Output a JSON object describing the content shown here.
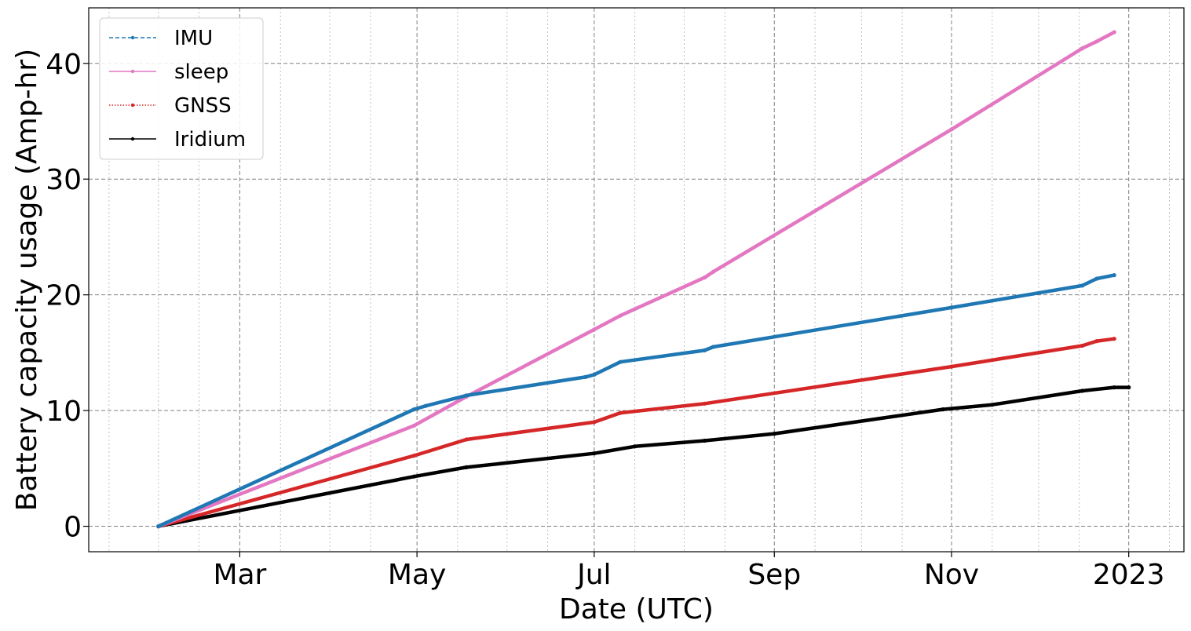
{
  "chart_data": {
    "type": "line",
    "xlabel": "Date (UTC)",
    "ylabel": "Battery capacity usage (Amp-hr)",
    "x_ticks": [
      {
        "date": "2022-03-01",
        "label": "Mar"
      },
      {
        "date": "2022-05-01",
        "label": "May"
      },
      {
        "date": "2022-07-01",
        "label": "Jul"
      },
      {
        "date": "2022-09-01",
        "label": "Sep"
      },
      {
        "date": "2022-11-01",
        "label": "Nov"
      },
      {
        "date": "2023-01-01",
        "label": "2023"
      }
    ],
    "y_ticks": [
      0,
      10,
      20,
      30,
      40
    ],
    "xlim": [
      "2022-01-08",
      "2023-01-20"
    ],
    "ylim": [
      -2.2,
      44.8
    ],
    "grid": true,
    "legend_position": "top-left",
    "series": [
      {
        "name": "IMU",
        "color": "#1f77b4",
        "line_style": "dashed",
        "points": [
          [
            "2022-02-01",
            0
          ],
          [
            "2022-04-30",
            10.1
          ],
          [
            "2022-05-04",
            10.4
          ],
          [
            "2022-05-18",
            11.3
          ],
          [
            "2022-06-28",
            12.9
          ],
          [
            "2022-07-01",
            13.1
          ],
          [
            "2022-07-10",
            14.2
          ],
          [
            "2022-08-08",
            15.2
          ],
          [
            "2022-08-11",
            15.5
          ],
          [
            "2022-11-01",
            18.9
          ],
          [
            "2022-12-16",
            20.8
          ],
          [
            "2022-12-21",
            21.4
          ],
          [
            "2022-12-27",
            21.7
          ]
        ]
      },
      {
        "name": "sleep",
        "color": "#e377c2",
        "line_style": "solid",
        "points": [
          [
            "2022-02-01",
            0
          ],
          [
            "2022-04-30",
            8.7
          ],
          [
            "2022-05-18",
            11.2
          ],
          [
            "2022-07-01",
            17.0
          ],
          [
            "2022-07-10",
            18.2
          ],
          [
            "2022-08-08",
            21.5
          ],
          [
            "2022-08-11",
            22.0
          ],
          [
            "2022-11-01",
            34.3
          ],
          [
            "2022-12-16",
            41.3
          ],
          [
            "2022-12-21",
            41.9
          ],
          [
            "2022-12-27",
            42.7
          ]
        ]
      },
      {
        "name": "GNSS",
        "color": "#d62728",
        "line_style": "dotted",
        "points": [
          [
            "2022-02-01",
            0
          ],
          [
            "2022-04-30",
            6.1
          ],
          [
            "2022-05-18",
            7.5
          ],
          [
            "2022-07-01",
            9.0
          ],
          [
            "2022-07-10",
            9.8
          ],
          [
            "2022-08-08",
            10.6
          ],
          [
            "2022-11-01",
            13.8
          ],
          [
            "2022-12-16",
            15.6
          ],
          [
            "2022-12-21",
            16.0
          ],
          [
            "2022-12-27",
            16.2
          ]
        ]
      },
      {
        "name": "Iridium",
        "color": "#000000",
        "line_style": "solid",
        "points": [
          [
            "2022-02-01",
            0
          ],
          [
            "2022-04-30",
            4.3
          ],
          [
            "2022-05-18",
            5.1
          ],
          [
            "2022-07-01",
            6.3
          ],
          [
            "2022-07-15",
            6.9
          ],
          [
            "2022-08-08",
            7.4
          ],
          [
            "2022-09-01",
            8.0
          ],
          [
            "2022-10-29",
            10.1
          ],
          [
            "2022-11-15",
            10.5
          ],
          [
            "2022-12-16",
            11.7
          ],
          [
            "2022-12-27",
            12.0
          ],
          [
            "2023-01-01",
            12.0
          ]
        ]
      }
    ]
  }
}
